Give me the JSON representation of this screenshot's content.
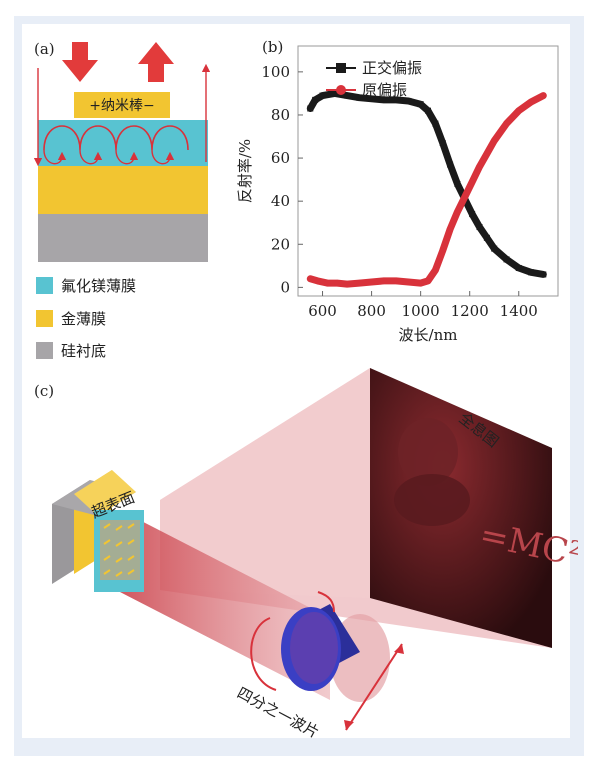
{
  "panels": {
    "a": {
      "label": "(a)",
      "nanorod_label": "+纳米棒−",
      "legend": [
        {
          "label": "氟化镁薄膜",
          "color": "#58c3d1"
        },
        {
          "label": "金薄膜",
          "color": "#f2c531"
        },
        {
          "label": "硅衬底",
          "color": "#a7a5a8"
        }
      ]
    },
    "b": {
      "label": "(b)"
    },
    "c": {
      "label": "(c)",
      "metasurface_label": "超表面",
      "hologram_label": "全息图",
      "waveplate_label": "四分之一波片"
    }
  },
  "chart_data": {
    "type": "line",
    "xlabel": "波长/nm",
    "ylabel": "反射率/%",
    "xlim": [
      500,
      1560
    ],
    "ylim": [
      -4,
      112
    ],
    "xticks": [
      600,
      800,
      1000,
      1200,
      1400
    ],
    "yticks": [
      0,
      20,
      40,
      60,
      80,
      100
    ],
    "legend_position": "top-left",
    "series": [
      {
        "name": "正交偏振",
        "color": "#1a1a1a",
        "marker": "square",
        "x": [
          550,
          570,
          600,
          650,
          700,
          750,
          800,
          850,
          900,
          950,
          1000,
          1030,
          1060,
          1090,
          1120,
          1150,
          1180,
          1210,
          1240,
          1270,
          1300,
          1350,
          1400,
          1450,
          1500
        ],
        "y": [
          83,
          87,
          89,
          90,
          89,
          88,
          87.5,
          87,
          87,
          86.5,
          85,
          82,
          76,
          67,
          57,
          48,
          41,
          34,
          28,
          23,
          18,
          13,
          9,
          7,
          6
        ]
      },
      {
        "name": "原偏振",
        "color": "#d8323b",
        "marker": "circle",
        "x": [
          550,
          580,
          620,
          660,
          700,
          750,
          800,
          850,
          900,
          950,
          1000,
          1030,
          1060,
          1090,
          1120,
          1150,
          1180,
          1210,
          1240,
          1270,
          1300,
          1350,
          1400,
          1450,
          1500
        ],
        "y": [
          4,
          3,
          2,
          2,
          1.5,
          2,
          2.5,
          3,
          3,
          2.5,
          2,
          3,
          8,
          17,
          27,
          35,
          42,
          49,
          56,
          62,
          68,
          76,
          82,
          86,
          89
        ]
      }
    ]
  }
}
